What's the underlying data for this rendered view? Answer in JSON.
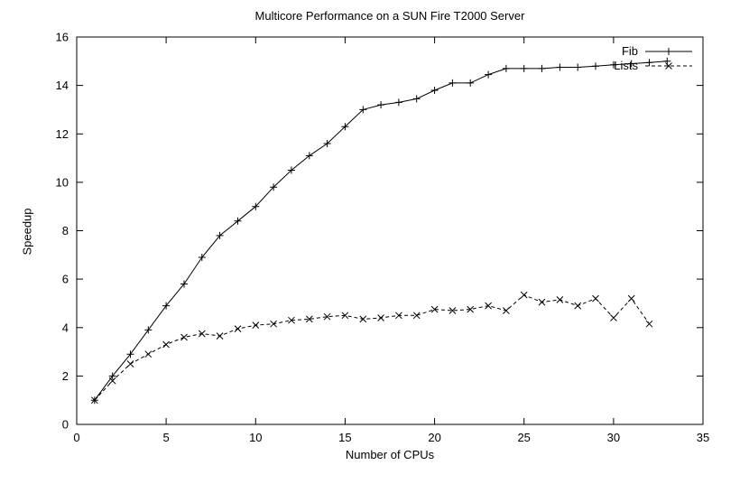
{
  "chart_data": {
    "type": "line",
    "title": "Multicore Performance on a SUN Fire T2000 Server",
    "xlabel": "Number of CPUs",
    "ylabel": "Speedup",
    "xlim": [
      0,
      35
    ],
    "ylim": [
      0,
      16
    ],
    "xticks": [
      0,
      5,
      10,
      15,
      20,
      25,
      30,
      35
    ],
    "yticks": [
      0,
      2,
      4,
      6,
      8,
      10,
      12,
      14,
      16
    ],
    "grid": false,
    "legend_position": "top-right",
    "axis_color": "#000000",
    "series": [
      {
        "name": "Fib",
        "marker": "plus",
        "line": "solid",
        "color": "#000000",
        "x": [
          1,
          2,
          3,
          4,
          5,
          6,
          7,
          8,
          9,
          10,
          11,
          12,
          13,
          14,
          15,
          16,
          17,
          18,
          19,
          20,
          21,
          22,
          23,
          24,
          25,
          26,
          27,
          28,
          29,
          30,
          31,
          32,
          33
        ],
        "y": [
          1.0,
          2.0,
          2.9,
          3.9,
          4.9,
          5.8,
          6.9,
          7.8,
          8.4,
          9.0,
          9.8,
          10.5,
          11.1,
          11.6,
          12.3,
          13.0,
          13.2,
          13.3,
          13.45,
          13.8,
          14.1,
          14.1,
          14.45,
          14.7,
          14.7,
          14.7,
          14.75,
          14.75,
          14.8,
          14.85,
          14.9,
          14.95,
          15.0
        ]
      },
      {
        "name": "Lists",
        "marker": "cross",
        "line": "dashed",
        "color": "#000000",
        "x": [
          1,
          2,
          3,
          4,
          5,
          6,
          7,
          8,
          9,
          10,
          11,
          12,
          13,
          14,
          15,
          16,
          17,
          18,
          19,
          20,
          21,
          22,
          23,
          24,
          25,
          26,
          27,
          28,
          29,
          30,
          31,
          32
        ],
        "y": [
          1.0,
          1.8,
          2.5,
          2.9,
          3.3,
          3.6,
          3.75,
          3.65,
          3.95,
          4.1,
          4.15,
          4.3,
          4.35,
          4.45,
          4.5,
          4.35,
          4.4,
          4.5,
          4.5,
          4.75,
          4.7,
          4.75,
          4.9,
          4.7,
          5.35,
          5.05,
          5.15,
          4.9,
          5.2,
          4.4,
          5.2,
          4.15
        ]
      }
    ]
  }
}
